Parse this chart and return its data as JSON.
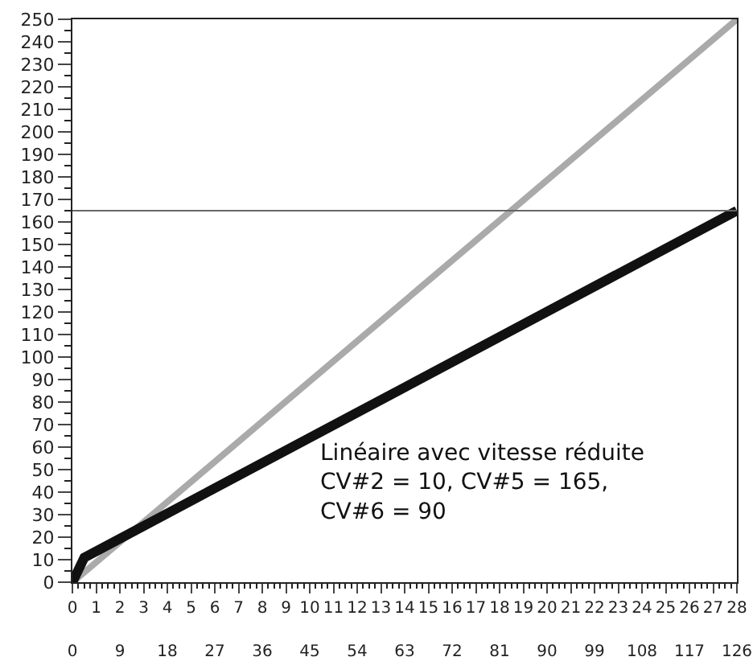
{
  "chart_data": {
    "type": "line",
    "series": [
      {
        "color": "#aaaaaa",
        "x": [
          0,
          28
        ],
        "values": [
          0,
          250
        ]
      },
      {
        "color": "#111111",
        "x": [
          0,
          0.5,
          28
        ],
        "values": [
          0,
          11,
          165
        ]
      }
    ],
    "xlim": [
      0,
      28
    ],
    "xticks": [
      0,
      1,
      2,
      3,
      4,
      5,
      6,
      7,
      8,
      9,
      10,
      11,
      12,
      13,
      14,
      15,
      16,
      17,
      18,
      19,
      20,
      21,
      22,
      23,
      24,
      25,
      26,
      27,
      28
    ],
    "x2lim": [
      0,
      126
    ],
    "x2ticks": [
      0,
      9,
      18,
      27,
      36,
      45,
      54,
      63,
      72,
      81,
      90,
      99,
      108,
      117,
      126
    ],
    "ylim": [
      0,
      250
    ],
    "yticks": [
      0,
      10,
      20,
      30,
      40,
      50,
      60,
      70,
      80,
      90,
      100,
      110,
      120,
      130,
      140,
      150,
      160,
      170,
      180,
      190,
      200,
      210,
      220,
      230,
      240,
      250
    ],
    "ref_lines": [
      {
        "axis": "y",
        "value": 165,
        "color": "#666666"
      }
    ],
    "annotations": [
      "Linéaire avec vitesse réduite\nCV#2 = 10, CV#5 = 165,\nCV#6 = 90"
    ],
    "grid": false,
    "marker": "none",
    "line_style": "solid"
  }
}
